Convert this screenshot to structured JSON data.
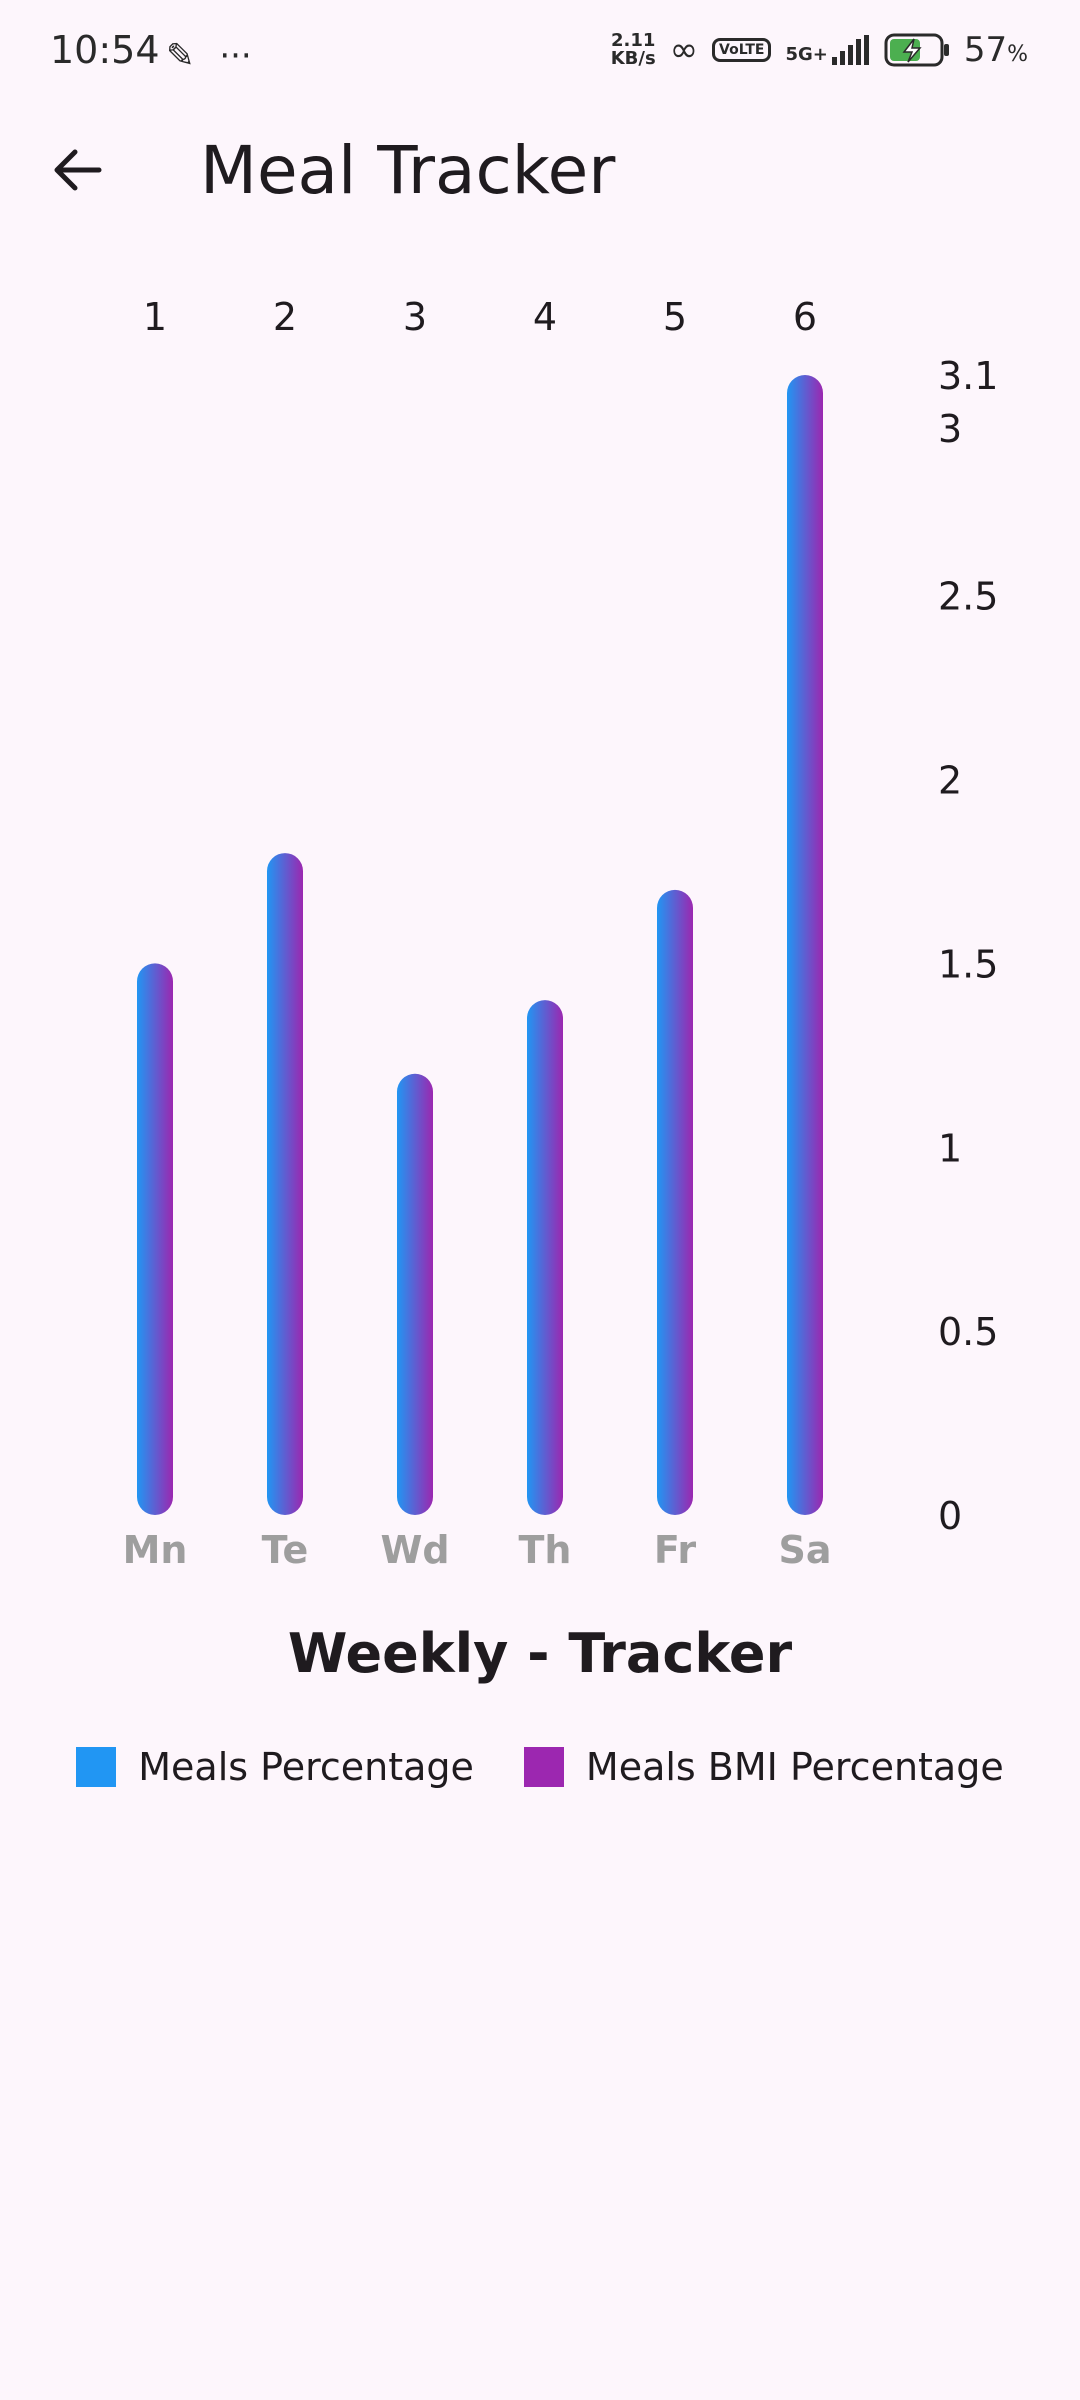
{
  "status_bar": {
    "time": "10:54",
    "net_speed_value": "2.11",
    "net_speed_unit": "KB/s",
    "volte": "VoLTE",
    "signal": "5G+",
    "battery_percent": "57",
    "battery_unit": "%"
  },
  "app_bar": {
    "title": "Meal Tracker",
    "back_icon": "arrow-left-icon"
  },
  "chart_data": {
    "type": "bar",
    "title": "",
    "categories": [
      "Mn",
      "Te",
      "Wd",
      "Th",
      "Fr",
      "Sa"
    ],
    "top_labels": [
      "1",
      "2",
      "3",
      "4",
      "5",
      "6"
    ],
    "values": [
      1.5,
      1.8,
      1.2,
      1.4,
      1.7,
      3.1
    ],
    "ylim": [
      0,
      3.1
    ],
    "y_ticks": [
      "0",
      "0.5",
      "1",
      "1.5",
      "2",
      "2.5",
      "3",
      "3.1"
    ],
    "y_tick_values": [
      0,
      0.5,
      1,
      1.5,
      2,
      2.5,
      3,
      3.1
    ],
    "axis_position": "right",
    "gradient": [
      "#2196f3",
      "#9c27b0"
    ],
    "series": [
      {
        "name": "Meals Percentage",
        "color": "#2196f3"
      },
      {
        "name": "Meals BMI Percentage",
        "color": "#9c27b0"
      }
    ]
  },
  "legend": {
    "title": "Weekly - Tracker",
    "items": [
      {
        "label": "Meals Percentage",
        "color": "#2196f3"
      },
      {
        "label": "Meals BMI Percentage",
        "color": "#9c27b0"
      }
    ]
  }
}
